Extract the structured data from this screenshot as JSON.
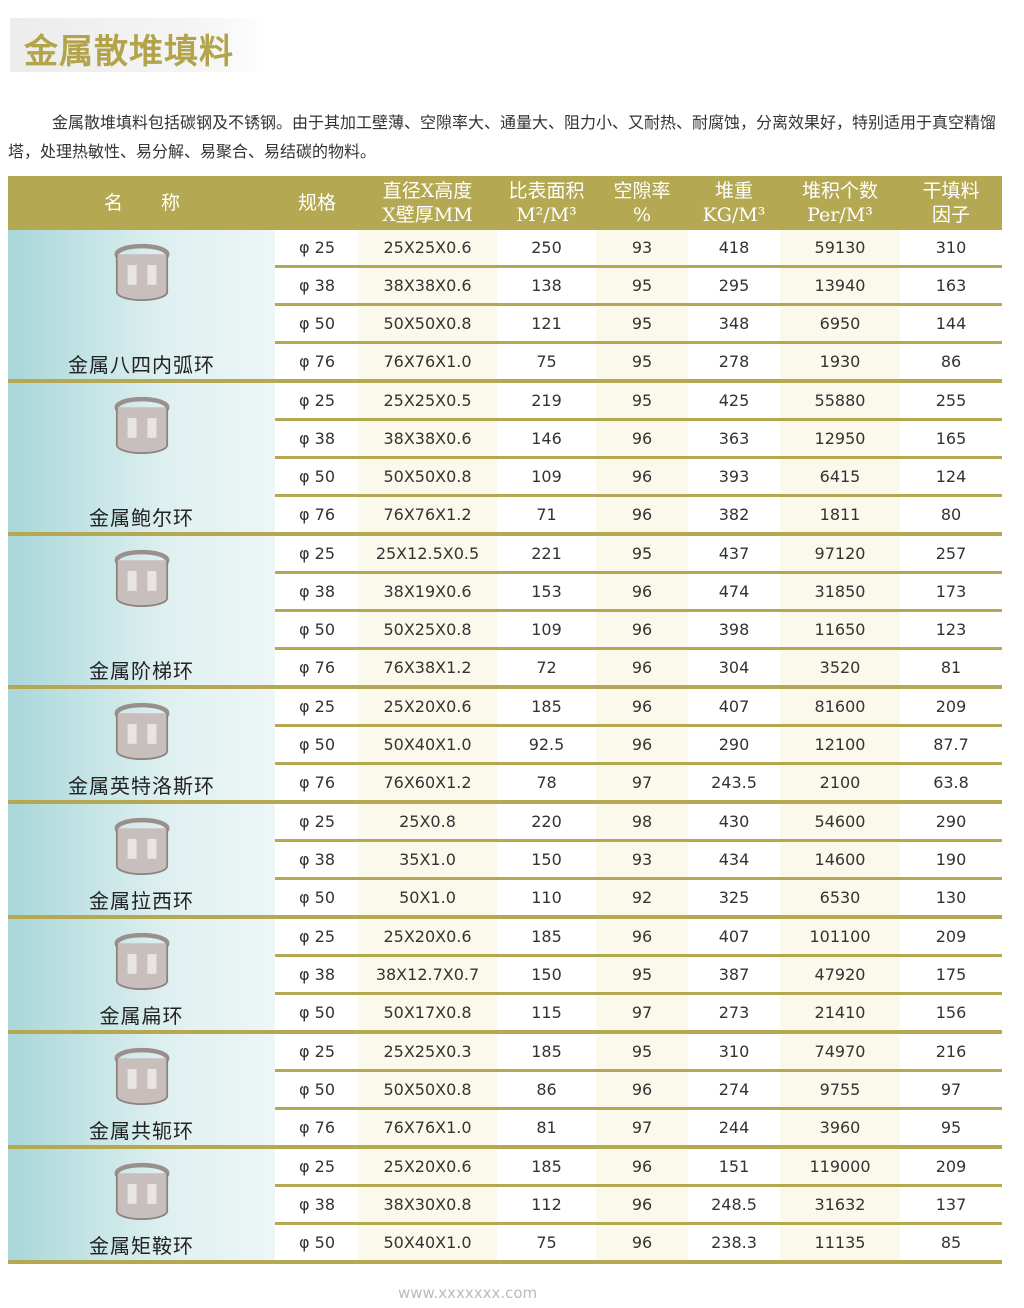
{
  "title": "金属散堆填料",
  "intro": "金属散堆填料包括碳钢及不锈钢。由于其加工壁薄、空隙率大、通量大、阻力小、又耐热、耐腐蚀，分离效果好，特别适用于真空精馏塔，处理热敏性、易分解、易聚合、易结碳的物料。",
  "watermark": "www.xxxxxxx.com",
  "columns": [
    "名　　称",
    "规格",
    "直径X高度\nX壁厚MM",
    "比表面积\nM²/M³",
    "空隙率\n%",
    "堆重\nKG/M³",
    "堆积个数\nPer/M³",
    "干填料\n因子"
  ],
  "accent_color": "#b5a852",
  "groups": [
    {
      "name": "金属八四内弧环",
      "rows": [
        [
          "φ 25",
          "25X25X0.6",
          "250",
          "93",
          "418",
          "59130",
          "310"
        ],
        [
          "φ 38",
          "38X38X0.6",
          "138",
          "95",
          "295",
          "13940",
          "163"
        ],
        [
          "φ 50",
          "50X50X0.8",
          "121",
          "95",
          "348",
          "6950",
          "144"
        ],
        [
          "φ 76",
          "76X76X1.0",
          "75",
          "95",
          "278",
          "1930",
          "86"
        ]
      ]
    },
    {
      "name": "金属鲍尔环",
      "rows": [
        [
          "φ 25",
          "25X25X0.5",
          "219",
          "95",
          "425",
          "55880",
          "255"
        ],
        [
          "φ 38",
          "38X38X0.6",
          "146",
          "96",
          "363",
          "12950",
          "165"
        ],
        [
          "φ 50",
          "50X50X0.8",
          "109",
          "96",
          "393",
          "6415",
          "124"
        ],
        [
          "φ 76",
          "76X76X1.2",
          "71",
          "96",
          "382",
          "1811",
          "80"
        ]
      ]
    },
    {
      "name": "金属阶梯环",
      "rows": [
        [
          "φ 25",
          "25X12.5X0.5",
          "221",
          "95",
          "437",
          "97120",
          "257"
        ],
        [
          "φ 38",
          "38X19X0.6",
          "153",
          "96",
          "474",
          "31850",
          "173"
        ],
        [
          "φ 50",
          "50X25X0.8",
          "109",
          "96",
          "398",
          "11650",
          "123"
        ],
        [
          "φ 76",
          "76X38X1.2",
          "72",
          "96",
          "304",
          "3520",
          "81"
        ]
      ]
    },
    {
      "name": "金属英特洛斯环",
      "rows": [
        [
          "φ 25",
          "25X20X0.6",
          "185",
          "96",
          "407",
          "81600",
          "209"
        ],
        [
          "φ 50",
          "50X40X1.0",
          "92.5",
          "96",
          "290",
          "12100",
          "87.7"
        ],
        [
          "φ 76",
          "76X60X1.2",
          "78",
          "97",
          "243.5",
          "2100",
          "63.8"
        ]
      ]
    },
    {
      "name": "金属拉西环",
      "rows": [
        [
          "φ 25",
          "25X0.8",
          "220",
          "98",
          "430",
          "54600",
          "290"
        ],
        [
          "φ 38",
          "35X1.0",
          "150",
          "93",
          "434",
          "14600",
          "190"
        ],
        [
          "φ 50",
          "50X1.0",
          "110",
          "92",
          "325",
          "6530",
          "130"
        ]
      ]
    },
    {
      "name": "金属扁环",
      "rows": [
        [
          "φ 25",
          "25X20X0.6",
          "185",
          "96",
          "407",
          "101100",
          "209"
        ],
        [
          "φ 38",
          "38X12.7X0.7",
          "150",
          "95",
          "387",
          "47920",
          "175"
        ],
        [
          "φ 50",
          "50X17X0.8",
          "115",
          "97",
          "273",
          "21410",
          "156"
        ]
      ]
    },
    {
      "name": "金属共轭环",
      "rows": [
        [
          "φ 25",
          "25X25X0.3",
          "185",
          "95",
          "310",
          "74970",
          "216"
        ],
        [
          "φ 50",
          "50X50X0.8",
          "86",
          "96",
          "274",
          "9755",
          "97"
        ],
        [
          "φ 76",
          "76X76X1.0",
          "81",
          "97",
          "244",
          "3960",
          "95"
        ]
      ]
    },
    {
      "name": "金属矩鞍环",
      "rows": [
        [
          "φ 25",
          "25X20X0.6",
          "185",
          "96",
          "151",
          "119000",
          "209"
        ],
        [
          "φ 38",
          "38X30X0.8",
          "112",
          "96",
          "248.5",
          "31632",
          "137"
        ],
        [
          "φ 50",
          "50X40X1.0",
          "75",
          "96",
          "238.3",
          "11135",
          "85"
        ]
      ]
    }
  ]
}
